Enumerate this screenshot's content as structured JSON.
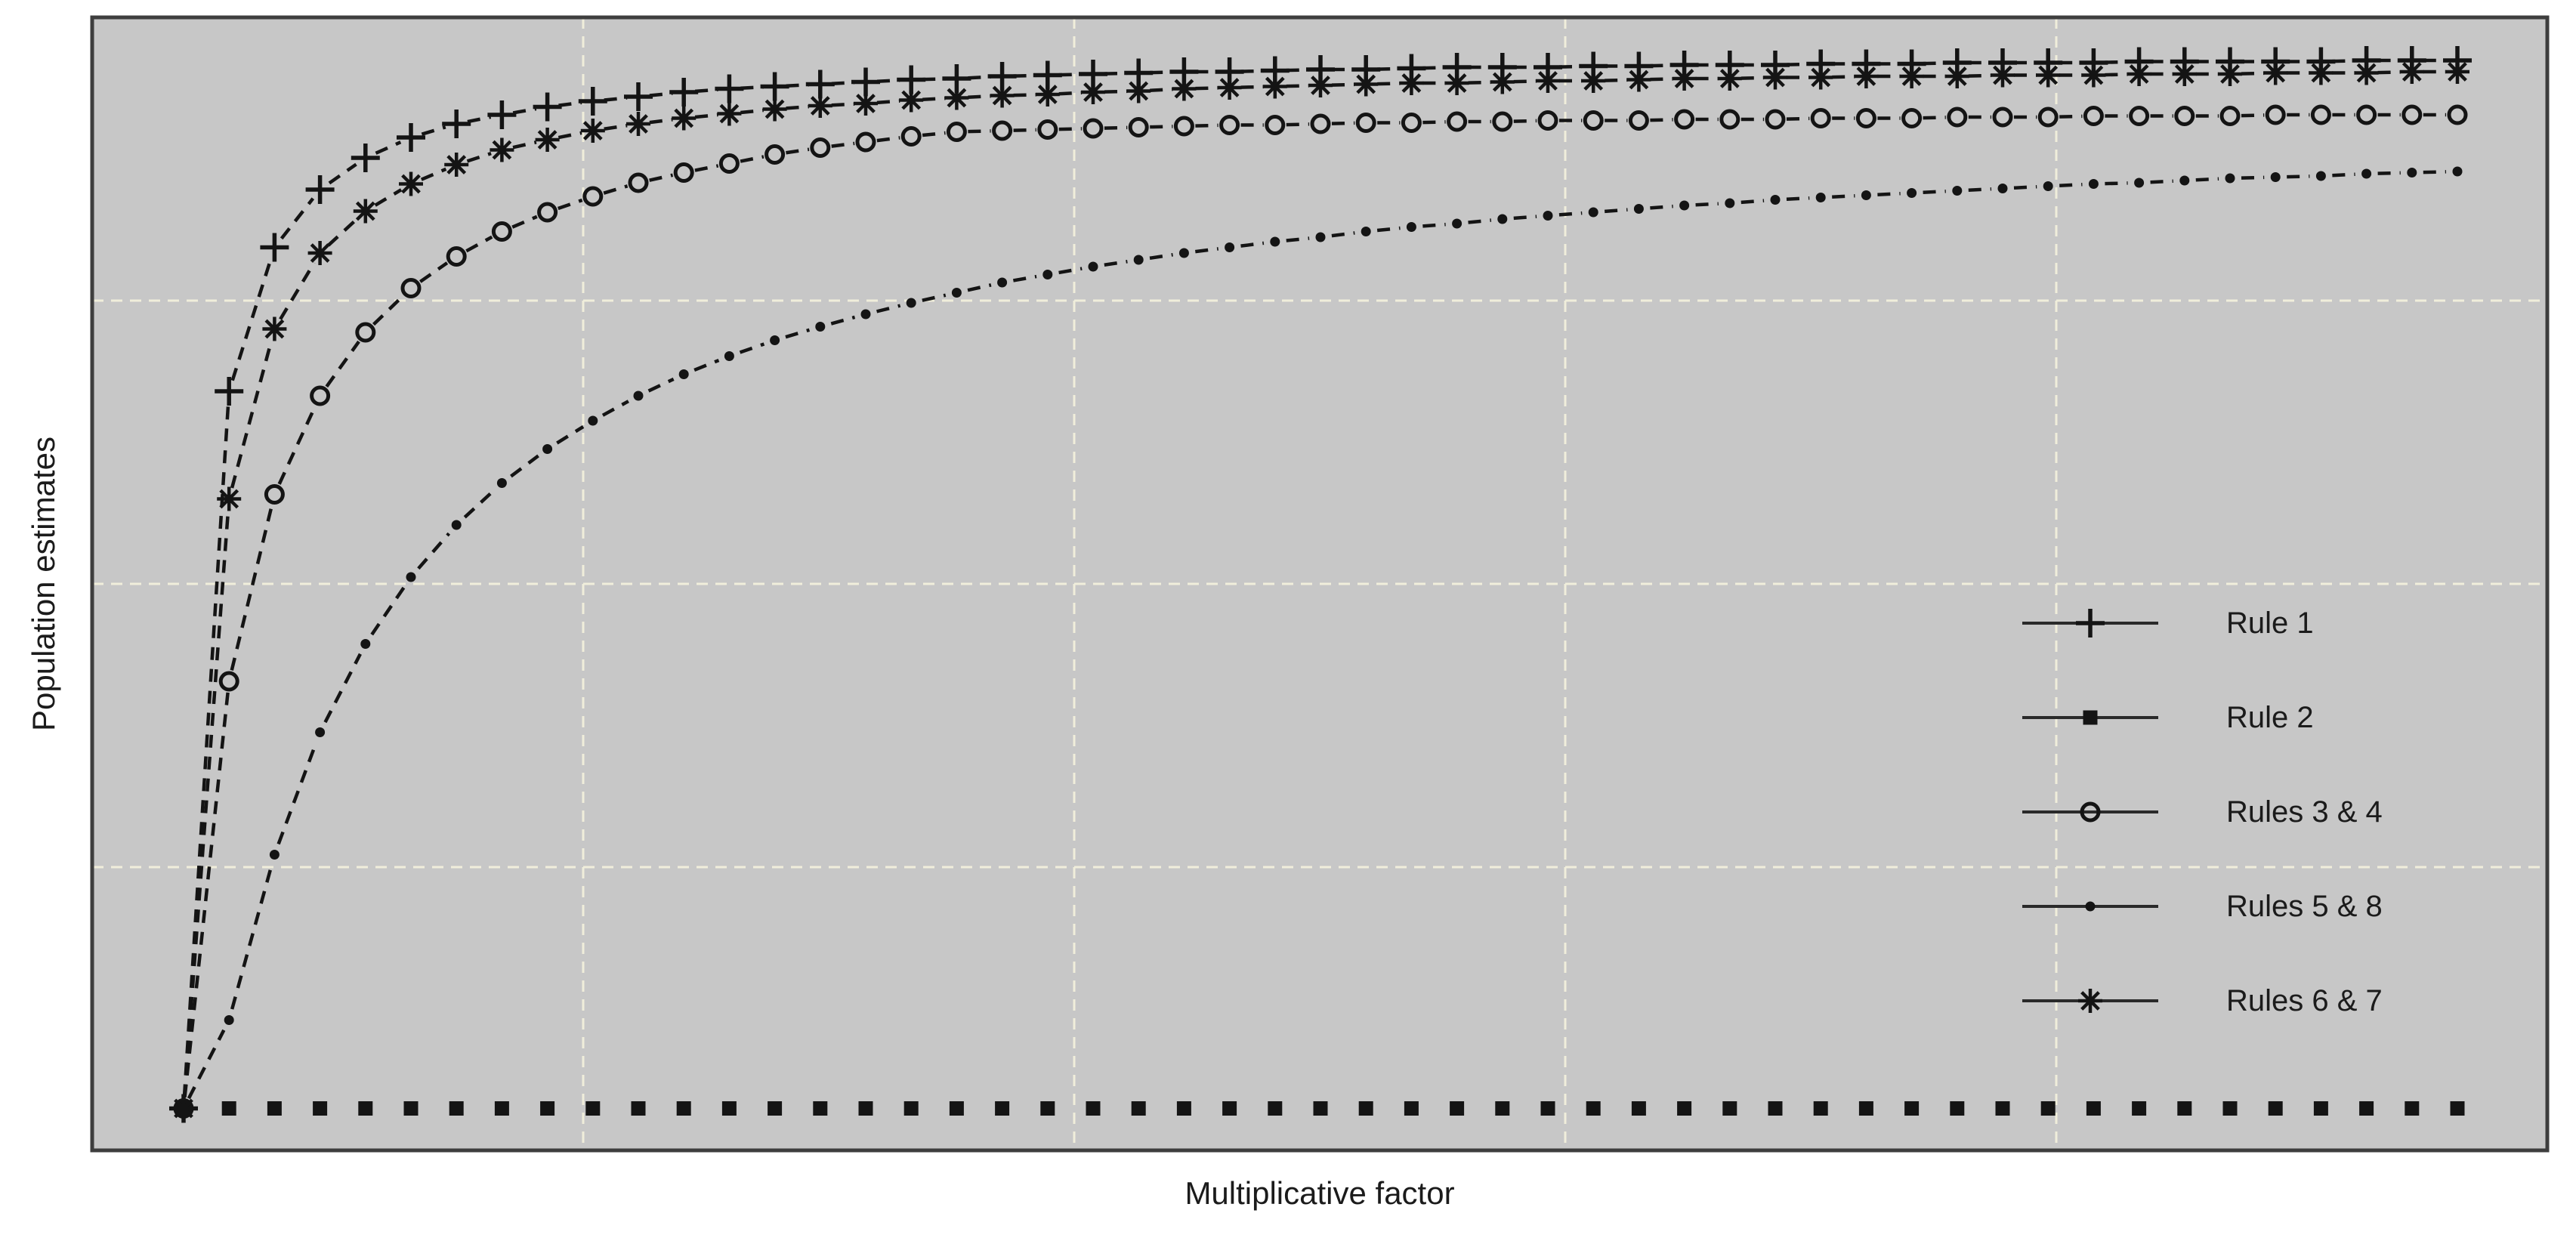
{
  "figure": {
    "xlabel": "Multiplicative factor",
    "ylabel": "Population estimates"
  },
  "legend": {
    "position": "right-center-inside-plot",
    "entries": [
      {
        "label": "Rule 1",
        "marker": "plus"
      },
      {
        "label": "Rule 2",
        "marker": "filled-square"
      },
      {
        "label": "Rules 3 & 4",
        "marker": "open-circle"
      },
      {
        "label": "Rules 5 & 8",
        "marker": "dot"
      },
      {
        "label": "Rules 6 & 7",
        "marker": "asterisk"
      }
    ]
  },
  "colors": {
    "page_bg": "#ffffff",
    "plot_bg": "#c7c7c7",
    "grid": "#f0eedb",
    "border": "#3e3e3e",
    "series": "#141414",
    "legend_line": "#2a2a2a",
    "text": "#1b1b1b"
  },
  "chart_data": {
    "type": "line",
    "title": "",
    "xlabel": "Multiplicative factor",
    "ylabel": "Population estimates",
    "axis_tick_labels": "none (no numeric ticks shown on either axis)",
    "line_style": "dashed segments between markers",
    "ylim": [
      0,
      100
    ],
    "y_unit": "percent of plot height (chart shows no numeric scale)",
    "x_index": [
      0,
      1,
      2,
      3,
      4,
      5,
      6,
      7,
      8,
      9,
      10,
      11,
      12,
      13,
      14,
      15,
      16,
      17,
      18,
      19,
      20,
      21,
      22,
      23,
      24,
      25,
      26,
      27,
      28,
      29,
      30,
      31,
      32,
      33,
      34,
      35,
      36,
      37,
      38,
      39,
      40,
      41,
      42,
      43,
      44,
      45,
      46,
      47,
      48,
      49,
      50
    ],
    "grid": {
      "style": "dashed",
      "x_fractions_from_left": [
        0.2,
        0.4,
        0.6,
        0.8
      ],
      "y_fractions_from_top": [
        0.25,
        0.5,
        0.75
      ]
    },
    "legend_position": "right-center",
    "series": [
      {
        "name": "Rule 1",
        "marker": "plus",
        "connect": true,
        "values": [
          3.7,
          67.0,
          79.7,
          84.8,
          87.6,
          89.4,
          90.6,
          91.4,
          92.1,
          92.6,
          93.0,
          93.4,
          93.7,
          93.9,
          94.1,
          94.3,
          94.5,
          94.6,
          94.8,
          94.9,
          95.0,
          95.1,
          95.2,
          95.2,
          95.3,
          95.4,
          95.4,
          95.5,
          95.6,
          95.6,
          95.6,
          95.7,
          95.7,
          95.8,
          95.8,
          95.8,
          95.9,
          95.9,
          95.9,
          96.0,
          96.0,
          96.0,
          96.0,
          96.1,
          96.1,
          96.1,
          96.1,
          96.1,
          96.2,
          96.2,
          96.2
        ]
      },
      {
        "name": "Rule 2",
        "marker": "filled-square",
        "connect": false,
        "values": [
          3.7,
          3.7,
          3.7,
          3.7,
          3.7,
          3.7,
          3.7,
          3.7,
          3.7,
          3.7,
          3.7,
          3.7,
          3.7,
          3.7,
          3.7,
          3.7,
          3.7,
          3.7,
          3.7,
          3.7,
          3.7,
          3.7,
          3.7,
          3.7,
          3.7,
          3.7,
          3.7,
          3.7,
          3.7,
          3.7,
          3.7,
          3.7,
          3.7,
          3.7,
          3.7,
          3.7,
          3.7,
          3.7,
          3.7,
          3.7,
          3.7,
          3.7,
          3.7,
          3.7,
          3.7,
          3.7,
          3.7,
          3.7,
          3.7,
          3.7,
          3.7
        ]
      },
      {
        "name": "Rules 3 & 4",
        "marker": "open-circle",
        "connect": true,
        "values": [
          3.7,
          41.4,
          57.9,
          66.6,
          72.2,
          76.1,
          78.9,
          81.1,
          82.8,
          84.2,
          85.4,
          86.3,
          87.1,
          87.9,
          88.5,
          89.0,
          89.5,
          89.9,
          90.0,
          90.1,
          90.2,
          90.3,
          90.4,
          90.5,
          90.5,
          90.6,
          90.7,
          90.7,
          90.8,
          90.8,
          90.9,
          90.9,
          90.9,
          91.0,
          91.0,
          91.0,
          91.1,
          91.1,
          91.1,
          91.2,
          91.2,
          91.2,
          91.3,
          91.3,
          91.3,
          91.3,
          91.4,
          91.4,
          91.4,
          91.4,
          91.4
        ]
      },
      {
        "name": "Rules 5 & 8",
        "marker": "dot",
        "connect": true,
        "values": [
          3.7,
          11.5,
          26.1,
          36.9,
          44.7,
          50.6,
          55.2,
          58.9,
          61.9,
          64.4,
          66.6,
          68.5,
          70.1,
          71.5,
          72.7,
          73.8,
          74.8,
          75.7,
          76.6,
          77.3,
          78.0,
          78.6,
          79.2,
          79.7,
          80.2,
          80.6,
          81.1,
          81.5,
          81.8,
          82.2,
          82.5,
          82.8,
          83.1,
          83.4,
          83.6,
          83.9,
          84.1,
          84.3,
          84.5,
          84.7,
          84.9,
          85.1,
          85.3,
          85.4,
          85.6,
          85.8,
          85.9,
          86.0,
          86.2,
          86.3,
          86.4
        ]
      },
      {
        "name": "Rules 6 & 7",
        "marker": "asterisk",
        "connect": true,
        "values": [
          3.7,
          57.5,
          72.5,
          79.2,
          82.9,
          85.3,
          87.0,
          88.3,
          89.2,
          90.0,
          90.6,
          91.1,
          91.5,
          91.9,
          92.2,
          92.4,
          92.7,
          92.9,
          93.1,
          93.2,
          93.4,
          93.5,
          93.7,
          93.8,
          93.9,
          94.0,
          94.1,
          94.2,
          94.2,
          94.3,
          94.4,
          94.4,
          94.5,
          94.6,
          94.6,
          94.7,
          94.7,
          94.8,
          94.8,
          94.8,
          94.9,
          94.9,
          94.9,
          95.0,
          95.0,
          95.0,
          95.1,
          95.1,
          95.1,
          95.2,
          95.2
        ]
      }
    ]
  }
}
